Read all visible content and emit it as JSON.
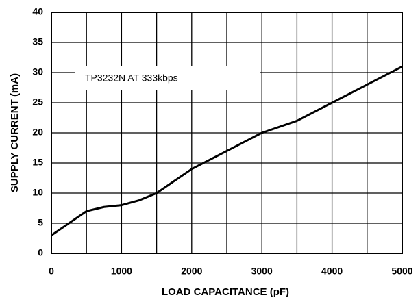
{
  "chart_data": {
    "type": "line",
    "x_label": "LOAD CAPACITANCE (pF)",
    "y_label": "SUPPLY CURRENT (mA)",
    "annotation": "TP3232N AT 333kbps",
    "x": [
      0,
      250,
      500,
      750,
      1000,
      1250,
      1500,
      2000,
      2500,
      3000,
      3500,
      4000,
      4500,
      5000
    ],
    "series": [
      {
        "name": "TP3232N AT 333kbps",
        "color": "#000000",
        "values": [
          3,
          5,
          7,
          7.7,
          8,
          8.8,
          10,
          14,
          17,
          20,
          22,
          25,
          28,
          31
        ]
      }
    ],
    "xlim": [
      0,
      5000
    ],
    "xticks": [
      0,
      1000,
      2000,
      3000,
      4000,
      5000
    ],
    "x_minor_ticks": [
      500,
      1500,
      2500,
      3500,
      4500
    ],
    "ylim": [
      0,
      40
    ],
    "yticks": [
      0,
      5,
      10,
      15,
      20,
      25,
      30,
      35,
      40
    ],
    "grid": true
  }
}
